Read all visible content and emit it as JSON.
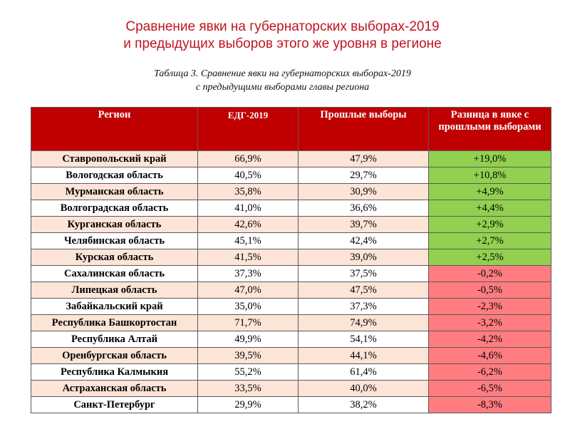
{
  "title": {
    "line1": "Сравнение явки на губернаторских выборах-2019",
    "line2": "и предыдущих выборов этого же уровня в регионе"
  },
  "caption": {
    "line1": "Таблица 3. Сравнение явки на губернаторских выборах-2019",
    "line2": "с предыдущими выборами главы региона"
  },
  "colors": {
    "header": "#c00000",
    "row_shade": "#fce4d6",
    "positive": "#92d050",
    "negative": "#ff7c80"
  },
  "table": {
    "headers": [
      "Регион",
      "ЕДГ-2019",
      "Прошлые выборы",
      "Разница в явке с прошлыми выборами"
    ],
    "rows": [
      {
        "region": "Ставропольский край",
        "edg": "66,9%",
        "prev": "47,9%",
        "diff": "+19,0%"
      },
      {
        "region": "Вологодская область",
        "edg": "40,5%",
        "prev": "29,7%",
        "diff": "+10,8%"
      },
      {
        "region": "Мурманская область",
        "edg": "35,8%",
        "prev": "30,9%",
        "diff": "+4,9%"
      },
      {
        "region": "Волгоградская область",
        "edg": "41,0%",
        "prev": "36,6%",
        "diff": "+4,4%"
      },
      {
        "region": "Курганская область",
        "edg": "42,6%",
        "prev": "39,7%",
        "diff": "+2,9%"
      },
      {
        "region": "Челябинская область",
        "edg": "45,1%",
        "prev": "42,4%",
        "diff": "+2,7%"
      },
      {
        "region": "Курская область",
        "edg": "41,5%",
        "prev": "39,0%",
        "diff": "+2,5%"
      },
      {
        "region": "Сахалинская область",
        "edg": "37,3%",
        "prev": "37,5%",
        "diff": "-0,2%"
      },
      {
        "region": "Липецкая область",
        "edg": "47,0%",
        "prev": "47,5%",
        "diff": "-0,5%"
      },
      {
        "region": "Забайкальский край",
        "edg": "35,0%",
        "prev": "37,3%",
        "diff": "-2,3%"
      },
      {
        "region": "Республика Башкортостан",
        "edg": "71,7%",
        "prev": "74,9%",
        "diff": "-3,2%"
      },
      {
        "region": "Республика Алтай",
        "edg": "49,9%",
        "prev": "54,1%",
        "diff": "-4,2%"
      },
      {
        "region": "Оренбургская область",
        "edg": "39,5%",
        "prev": "44,1%",
        "diff": "-4,6%"
      },
      {
        "region": "Республика Калмыкия",
        "edg": "55,2%",
        "prev": "61,4%",
        "diff": "-6,2%"
      },
      {
        "region": "Астраханская область",
        "edg": "33,5%",
        "prev": "40,0%",
        "diff": "-6,5%"
      },
      {
        "region": "Санкт-Петербург",
        "edg": "29,9%",
        "prev": "38,2%",
        "diff": "-8,3%"
      }
    ]
  }
}
